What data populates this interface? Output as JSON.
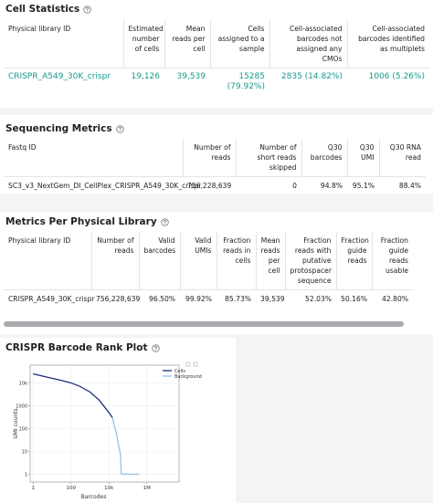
{
  "cell_statistics": {
    "title": "Cell Statistics",
    "columns": [
      "Physical library ID",
      "Estimated number of cells",
      "Mean reads per cell",
      "Cells assigned to a sample",
      "Cell-associated barcodes not assigned any CMOs",
      "Cell-associated barcodes identified as multiplets"
    ],
    "rows": [
      [
        "CRISPR_A549_30K_crispr",
        "19,126",
        "39,539",
        "15285 (79.92%)",
        "2835 (14.82%)",
        "1006 (5.26%)"
      ]
    ]
  },
  "sequencing_metrics": {
    "title": "Sequencing Metrics",
    "columns": [
      "Fastq ID",
      "Number of reads",
      "Number of short reads skipped",
      "Q30 barcodes",
      "Q30 UMI",
      "Q30 RNA read"
    ],
    "rows": [
      [
        "SC3_v3_NextGem_DI_CellPlex_CRISPR_A549_30K_crispr",
        "756,228,639",
        "0",
        "94.8%",
        "95.1%",
        "88.4%"
      ]
    ]
  },
  "physical_library_metrics": {
    "title": "Metrics Per Physical Library",
    "columns": [
      "Physical library ID",
      "Number of reads",
      "Valid barcodes",
      "Valid UMIs",
      "Fraction reads in cells",
      "Mean reads per cell",
      "Fraction reads with putative protospacer sequence",
      "Fraction guide reads",
      "Fraction guide reads usable"
    ],
    "rows": [
      [
        "CRISPR_A549_30K_crispr",
        "756,228,639",
        "96.50%",
        "99.92%",
        "85.73%",
        "39,539",
        "52.03%",
        "50.16%",
        "42.80%"
      ]
    ]
  },
  "rank_plot": {
    "title": "CRISPR Barcode Rank Plot",
    "type": "line",
    "x_label": "Barcodes",
    "y_label": "UMI counts",
    "xscale": "log",
    "yscale": "log",
    "grid": true,
    "xlim": [
      0.7,
      50000000
    ],
    "ylim": [
      0.45,
      60000
    ],
    "xticks": [
      1,
      100,
      {
        "value": 10000,
        "label": "10k"
      },
      {
        "value": 1000000,
        "label": "1M"
      }
    ],
    "yticks": [
      1,
      10,
      100,
      1000,
      {
        "value": 10000,
        "label": "10k"
      }
    ],
    "series": [
      {
        "name": "Cells",
        "color": "#1b2f7a",
        "x": [
          1,
          3,
          10,
          30,
          100,
          300,
          1000,
          3000,
          10000,
          15285
        ],
        "y": [
          25000,
          20000,
          16000,
          13000,
          10000,
          7000,
          4000,
          1800,
          500,
          300
        ]
      },
      {
        "name": "Background",
        "color": "#8fc3e8",
        "x": [
          15285,
          20000,
          25000,
          30000,
          40000,
          45000,
          60000,
          400000
        ],
        "y": [
          300,
          120,
          60,
          25,
          8,
          1,
          1,
          1
        ]
      }
    ]
  }
}
